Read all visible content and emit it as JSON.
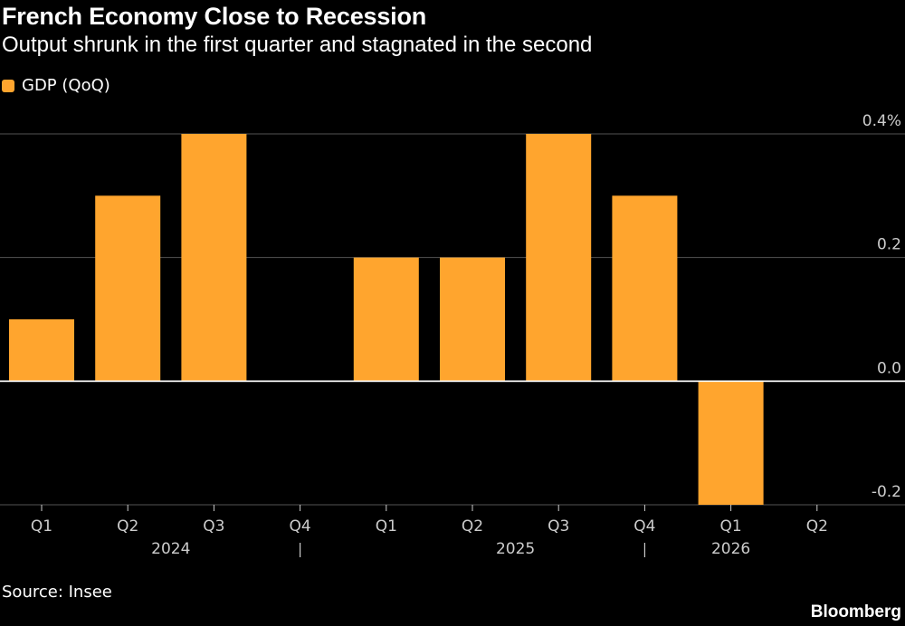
{
  "chart_data": {
    "type": "bar",
    "title": "French Economy Close to Recession",
    "subtitle": "Output shrunk in the first quarter and stagnated in the second",
    "categories": [
      "Q1",
      "Q2",
      "Q3",
      "Q4",
      "Q1",
      "Q2",
      "Q3",
      "Q4",
      "Q1",
      "Q2"
    ],
    "year_labels": [
      {
        "label": "2024",
        "under": [
          "Q1",
          "Q2",
          "Q3",
          "Q4"
        ]
      },
      {
        "label": "2025",
        "under": [
          "Q1",
          "Q2",
          "Q3",
          "Q4"
        ]
      },
      {
        "label": "2026",
        "under": [
          "Q1",
          "Q2"
        ]
      }
    ],
    "series": [
      {
        "name": "GDP (QoQ)",
        "values": [
          0.1,
          0.3,
          0.4,
          0.0,
          0.2,
          0.2,
          0.4,
          0.3,
          -0.2,
          0.0
        ],
        "color": "#ffa52e"
      }
    ],
    "y_ticks": [
      "0.4%",
      "0.2",
      "0.0",
      "-0.2"
    ],
    "y_tick_values": [
      0.4,
      0.2,
      0.0,
      -0.2
    ],
    "ylim": [
      -0.2,
      0.4
    ],
    "grid": true,
    "legend_position": "top-left",
    "source": "Source: Insee",
    "brand": "Bloomberg"
  },
  "colors": {
    "background": "#000000",
    "text": "#ffffff",
    "axis_text": "#cccccc",
    "gridline": "#555555",
    "zero_line": "#ffffff"
  }
}
